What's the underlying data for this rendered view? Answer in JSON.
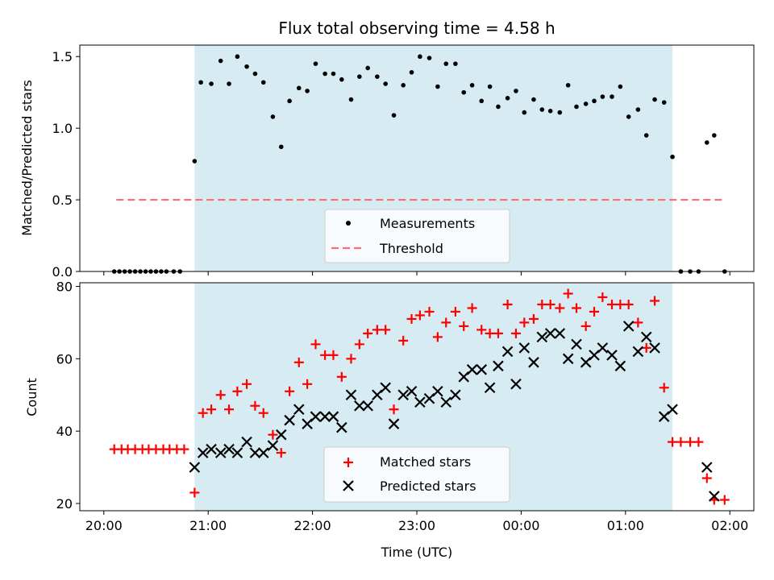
{
  "title": "Flux total observing time = 4.58 h",
  "colors": {
    "observing_band": "#add8e6",
    "measurement": "#000000",
    "threshold": "#ff6e6e",
    "matched": "#ff0000",
    "predicted": "#000000"
  },
  "shared_x": {
    "label": "Time (UTC)",
    "ticks": [
      "20:00",
      "21:00",
      "22:00",
      "23:00",
      "00:00",
      "01:00",
      "02:00"
    ],
    "tick_hours": [
      20,
      21,
      22,
      23,
      24,
      25,
      26
    ],
    "range_hours": [
      19.77,
      26.23
    ]
  },
  "chart_data": [
    {
      "type": "scatter",
      "panel": "top",
      "xlabel": "",
      "ylabel": "Matched/Predicted stars",
      "ylim": [
        0,
        1.58
      ],
      "yticks": [
        "0.0",
        "0.5",
        "1.0",
        "1.5"
      ],
      "ytick_values": [
        0,
        0.5,
        1.0,
        1.5
      ],
      "band_hours": [
        20.87,
        25.45
      ],
      "legend": {
        "position": "lower-center",
        "entries": [
          "Measurements",
          "Threshold"
        ]
      },
      "threshold": {
        "name": "Threshold",
        "value": 0.5,
        "x_hours": [
          20.12,
          25.94
        ]
      },
      "series": [
        {
          "name": "Measurements",
          "x_hours": [
            20.1,
            20.15,
            20.2,
            20.25,
            20.3,
            20.35,
            20.4,
            20.45,
            20.5,
            20.55,
            20.6,
            20.67,
            20.73,
            20.87,
            20.93,
            21.03,
            21.12,
            21.2,
            21.28,
            21.37,
            21.45,
            21.53,
            21.62,
            21.7,
            21.78,
            21.87,
            21.95,
            22.03,
            22.12,
            22.2,
            22.28,
            22.37,
            22.45,
            22.53,
            22.62,
            22.7,
            22.78,
            22.87,
            22.95,
            23.03,
            23.12,
            23.2,
            23.28,
            23.37,
            23.45,
            23.53,
            23.62,
            23.7,
            23.78,
            23.87,
            23.95,
            24.03,
            24.12,
            24.2,
            24.28,
            24.37,
            24.45,
            24.53,
            24.62,
            24.7,
            24.78,
            24.87,
            24.95,
            25.03,
            25.12,
            25.2,
            25.28,
            25.37,
            25.45,
            25.53,
            25.62,
            25.7,
            25.78,
            25.85,
            25.95
          ],
          "y": [
            0,
            0,
            0,
            0,
            0,
            0,
            0,
            0,
            0,
            0,
            0,
            0,
            0,
            0.77,
            1.32,
            1.31,
            1.47,
            1.31,
            1.5,
            1.43,
            1.38,
            1.32,
            1.08,
            0.87,
            1.19,
            1.28,
            1.26,
            1.45,
            1.38,
            1.38,
            1.34,
            1.2,
            1.36,
            1.42,
            1.36,
            1.31,
            1.09,
            1.3,
            1.39,
            1.5,
            1.49,
            1.29,
            1.45,
            1.45,
            1.25,
            1.3,
            1.19,
            1.29,
            1.15,
            1.21,
            1.26,
            1.11,
            1.2,
            1.13,
            1.12,
            1.11,
            1.3,
            1.15,
            1.17,
            1.19,
            1.22,
            1.22,
            1.29,
            1.08,
            1.13,
            0.95,
            1.2,
            1.18,
            0.8,
            0,
            0,
            0,
            0.9,
            0.95,
            0
          ]
        }
      ]
    },
    {
      "type": "scatter",
      "panel": "bottom",
      "xlabel": "Time (UTC)",
      "ylabel": "Count",
      "ylim": [
        18,
        81
      ],
      "yticks": [
        "20",
        "40",
        "60",
        "80"
      ],
      "ytick_values": [
        20,
        40,
        60,
        80
      ],
      "band_hours": [
        20.87,
        25.45
      ],
      "legend": {
        "position": "lower-center",
        "entries": [
          "Matched stars",
          "Predicted stars"
        ]
      },
      "series": [
        {
          "name": "Matched stars",
          "marker": "plus",
          "x_hours": [
            20.1,
            20.17,
            20.23,
            20.3,
            20.37,
            20.43,
            20.5,
            20.57,
            20.63,
            20.7,
            20.77,
            20.87,
            20.95,
            21.03,
            21.12,
            21.2,
            21.28,
            21.37,
            21.45,
            21.53,
            21.62,
            21.7,
            21.78,
            21.87,
            21.95,
            22.03,
            22.12,
            22.2,
            22.28,
            22.37,
            22.45,
            22.53,
            22.62,
            22.7,
            22.78,
            22.87,
            22.95,
            23.03,
            23.12,
            23.2,
            23.28,
            23.37,
            23.45,
            23.53,
            23.62,
            23.7,
            23.78,
            23.87,
            23.95,
            24.03,
            24.12,
            24.2,
            24.28,
            24.37,
            24.45,
            24.53,
            24.62,
            24.7,
            24.78,
            24.87,
            24.95,
            25.03,
            25.12,
            25.2,
            25.28,
            25.37,
            25.45,
            25.53,
            25.62,
            25.7,
            25.78,
            25.85,
            25.95
          ],
          "y": [
            35,
            35,
            35,
            35,
            35,
            35,
            35,
            35,
            35,
            35,
            35,
            23,
            45,
            46,
            50,
            46,
            51,
            53,
            47,
            45,
            39,
            34,
            51,
            59,
            53,
            64,
            61,
            61,
            55,
            60,
            64,
            67,
            68,
            68,
            46,
            65,
            71,
            72,
            73,
            66,
            70,
            73,
            69,
            74,
            68,
            67,
            67,
            75,
            67,
            70,
            71,
            75,
            75,
            74,
            78,
            74,
            69,
            73,
            77,
            75,
            75,
            75,
            70,
            63,
            76,
            52,
            37,
            37,
            37,
            37,
            27,
            21,
            21
          ]
        },
        {
          "name": "Predicted stars",
          "marker": "x",
          "x_hours": [
            20.87,
            20.95,
            21.03,
            21.12,
            21.2,
            21.28,
            21.37,
            21.45,
            21.53,
            21.62,
            21.7,
            21.78,
            21.87,
            21.95,
            22.03,
            22.12,
            22.2,
            22.28,
            22.37,
            22.45,
            22.53,
            22.62,
            22.7,
            22.78,
            22.87,
            22.95,
            23.03,
            23.12,
            23.2,
            23.28,
            23.37,
            23.45,
            23.53,
            23.62,
            23.7,
            23.78,
            23.87,
            23.95,
            24.03,
            24.12,
            24.2,
            24.28,
            24.37,
            24.45,
            24.53,
            24.62,
            24.7,
            24.78,
            24.87,
            24.95,
            25.03,
            25.12,
            25.2,
            25.28,
            25.37,
            25.45,
            25.78,
            25.85
          ],
          "y": [
            30,
            34,
            35,
            34,
            35,
            34,
            37,
            34,
            34,
            36,
            39,
            43,
            46,
            42,
            44,
            44,
            44,
            41,
            50,
            47,
            47,
            50,
            52,
            42,
            50,
            51,
            48,
            49,
            51,
            48,
            50,
            55,
            57,
            57,
            52,
            58,
            62,
            53,
            63,
            59,
            66,
            67,
            67,
            60,
            64,
            59,
            61,
            63,
            61,
            58,
            69,
            62,
            66,
            63,
            44,
            46,
            30,
            22
          ]
        }
      ]
    }
  ]
}
